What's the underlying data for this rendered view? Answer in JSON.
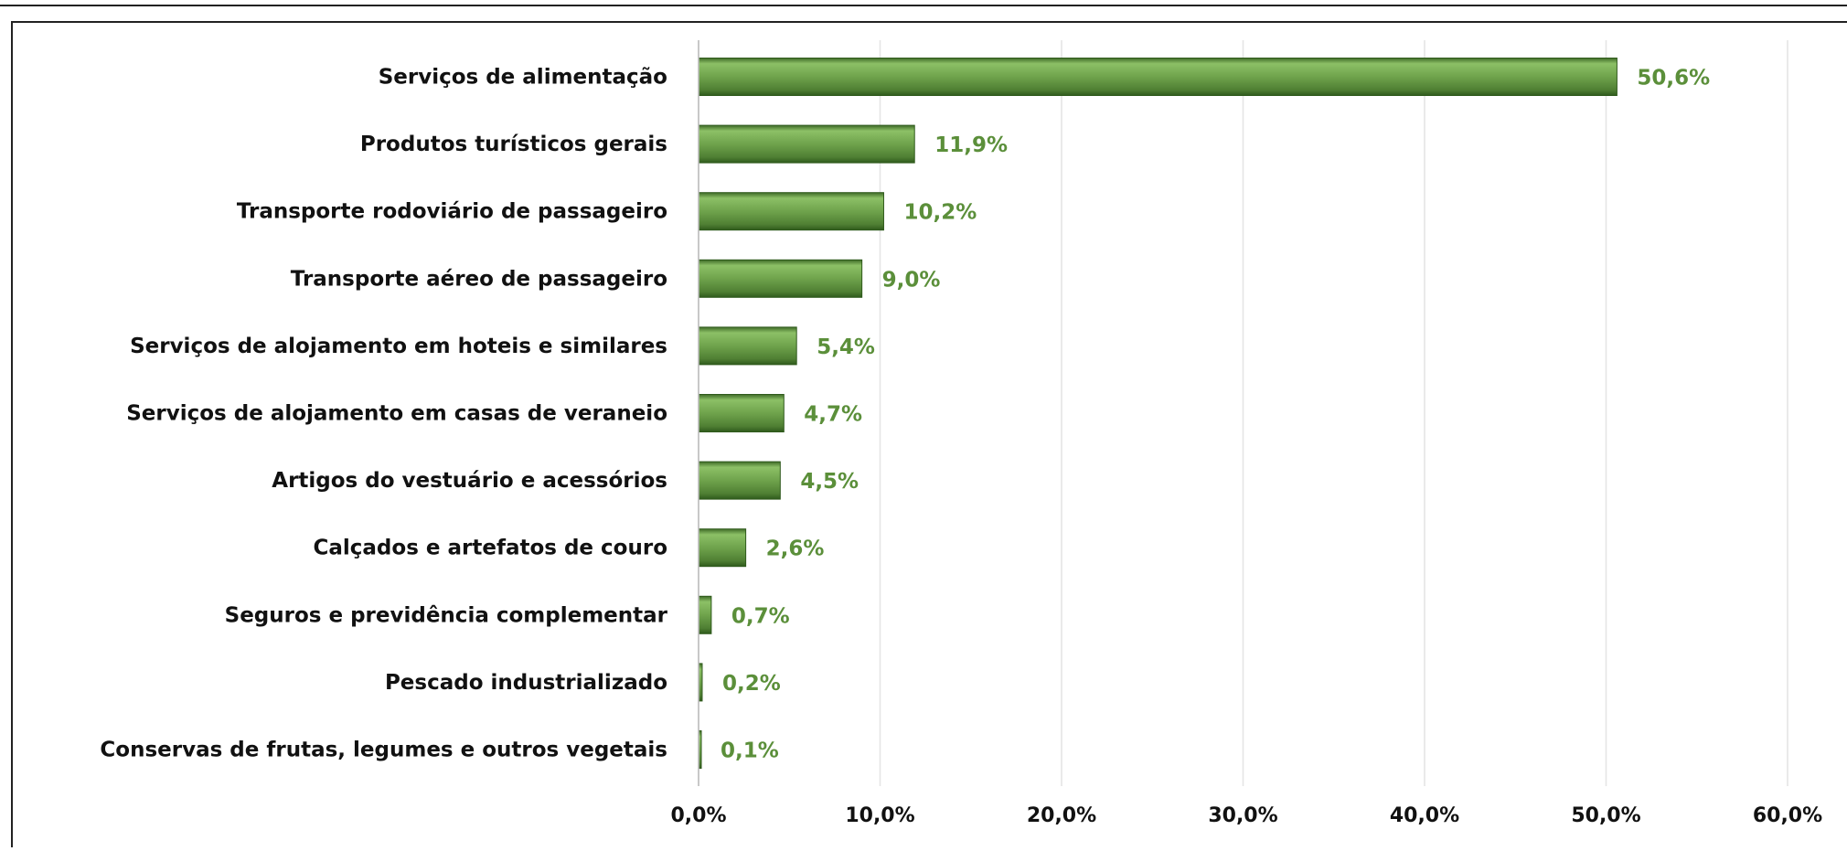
{
  "chart_data": {
    "type": "bar",
    "orientation": "horizontal",
    "categories": [
      "Serviços  de alimentação",
      "Produtos turísticos gerais",
      "Transporte rodoviário de passageiro",
      "Transporte aéreo de passageiro",
      "Serviços de alojamento em hoteis e similares",
      "Serviços de alojamento em casas de veraneio",
      "Artigos do vestuário e acessórios",
      "Calçados e artefatos de couro",
      "Seguros e previdência complementar",
      "Pescado industrializado",
      "Conservas de frutas, legumes e outros vegetais"
    ],
    "values": [
      50.6,
      11.9,
      10.2,
      9.0,
      5.4,
      4.7,
      4.5,
      2.6,
      0.7,
      0.2,
      0.1
    ],
    "value_labels": [
      "50,6%",
      "11,9%",
      "10,2%",
      "9,0%",
      "5,4%",
      "4,7%",
      "4,5%",
      "2,6%",
      "0,7%",
      "0,2%",
      "0,1%"
    ],
    "color": "#5e9140",
    "xlim": [
      0,
      60
    ],
    "xticks": [
      {
        "value": 0,
        "label": "0,0%"
      },
      {
        "value": 10,
        "label": "10,0%"
      },
      {
        "value": 20,
        "label": "20,0%"
      },
      {
        "value": 30,
        "label": "30,0%"
      },
      {
        "value": 40,
        "label": "40,0%"
      },
      {
        "value": 50,
        "label": "50,0%"
      },
      {
        "value": 60,
        "label": "60,0%"
      }
    ],
    "grid": true
  }
}
